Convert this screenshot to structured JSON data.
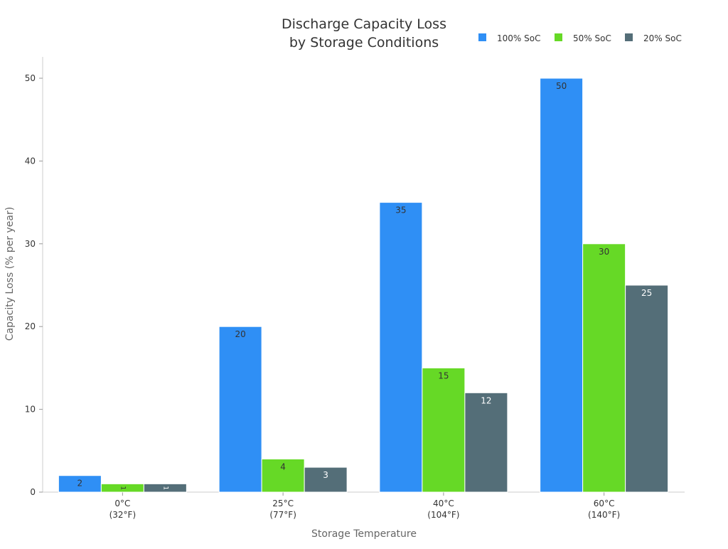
{
  "chart_data": {
    "type": "bar",
    "title": "Discharge Capacity Loss\nby Storage Conditions",
    "title_lines": [
      "Discharge Capacity Loss",
      "by Storage Conditions"
    ],
    "xlabel": "Storage Temperature",
    "ylabel": "Capacity Loss (% per year)",
    "categories": [
      [
        "0°C",
        "(32°F)"
      ],
      [
        "25°C",
        "(77°F)"
      ],
      [
        "40°C",
        "(104°F)"
      ],
      [
        "60°C",
        "(140°F)"
      ]
    ],
    "series": [
      {
        "name": "100% SoC",
        "color": "#2f8ff5",
        "label_color": "#333333",
        "values": [
          2,
          20,
          35,
          50
        ]
      },
      {
        "name": "50% SoC",
        "color": "#66d926",
        "label_color": "#333333",
        "values": [
          1,
          4,
          15,
          30
        ]
      },
      {
        "name": "20% SoC",
        "color": "#546e78",
        "label_color": "#ffffff",
        "values": [
          1,
          3,
          12,
          25
        ]
      }
    ],
    "yticks": [
      0,
      10,
      20,
      30,
      40,
      50
    ],
    "ylim": [
      0,
      52.5
    ],
    "grid": false,
    "legend": "top-right",
    "data_labels": true
  }
}
